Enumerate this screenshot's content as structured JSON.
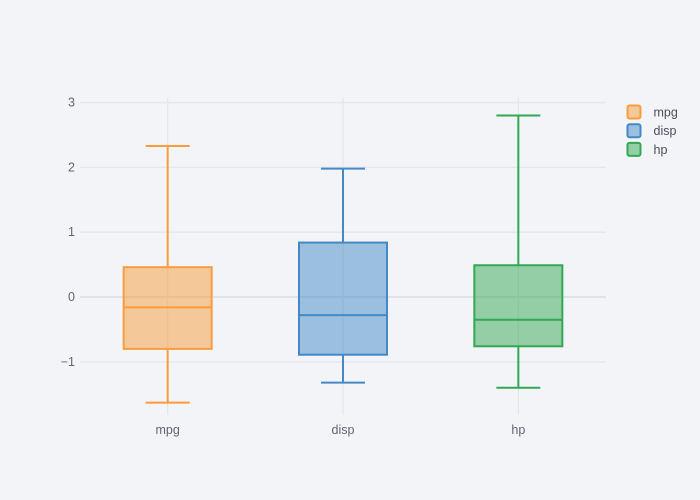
{
  "colors": {
    "background": "#f3f4f8",
    "grid": "#e4e6ec",
    "zeroline": "#e1e3ea",
    "tick_label": "#5f6670",
    "legend_text": "#4a4f59"
  },
  "chart_data": {
    "type": "box",
    "title": "",
    "xlabel": "",
    "ylabel": "",
    "categories": [
      "mpg",
      "disp",
      "hp"
    ],
    "series": [
      {
        "name": "mpg",
        "line_color": "#f89c3c",
        "fill_opacity": 0.5,
        "lowerfence": -1.63,
        "q1": -0.8,
        "median": -0.16,
        "q3": 0.46,
        "upperfence": 2.33
      },
      {
        "name": "disp",
        "line_color": "#4489c6",
        "fill_opacity": 0.5,
        "lowerfence": -1.32,
        "q1": -0.89,
        "median": -0.28,
        "q3": 0.84,
        "upperfence": 1.98
      },
      {
        "name": "hp",
        "line_color": "#33a853",
        "fill_opacity": 0.5,
        "lowerfence": -1.4,
        "q1": -0.76,
        "median": -0.35,
        "q3": 0.49,
        "upperfence": 2.8
      }
    ],
    "yticks": [
      -1,
      0,
      1,
      2,
      3
    ],
    "ylim": [
      -1.82,
      3.07
    ],
    "grid": true,
    "legend": {
      "position": "top-right",
      "entries": [
        "mpg",
        "disp",
        "hp"
      ]
    }
  }
}
